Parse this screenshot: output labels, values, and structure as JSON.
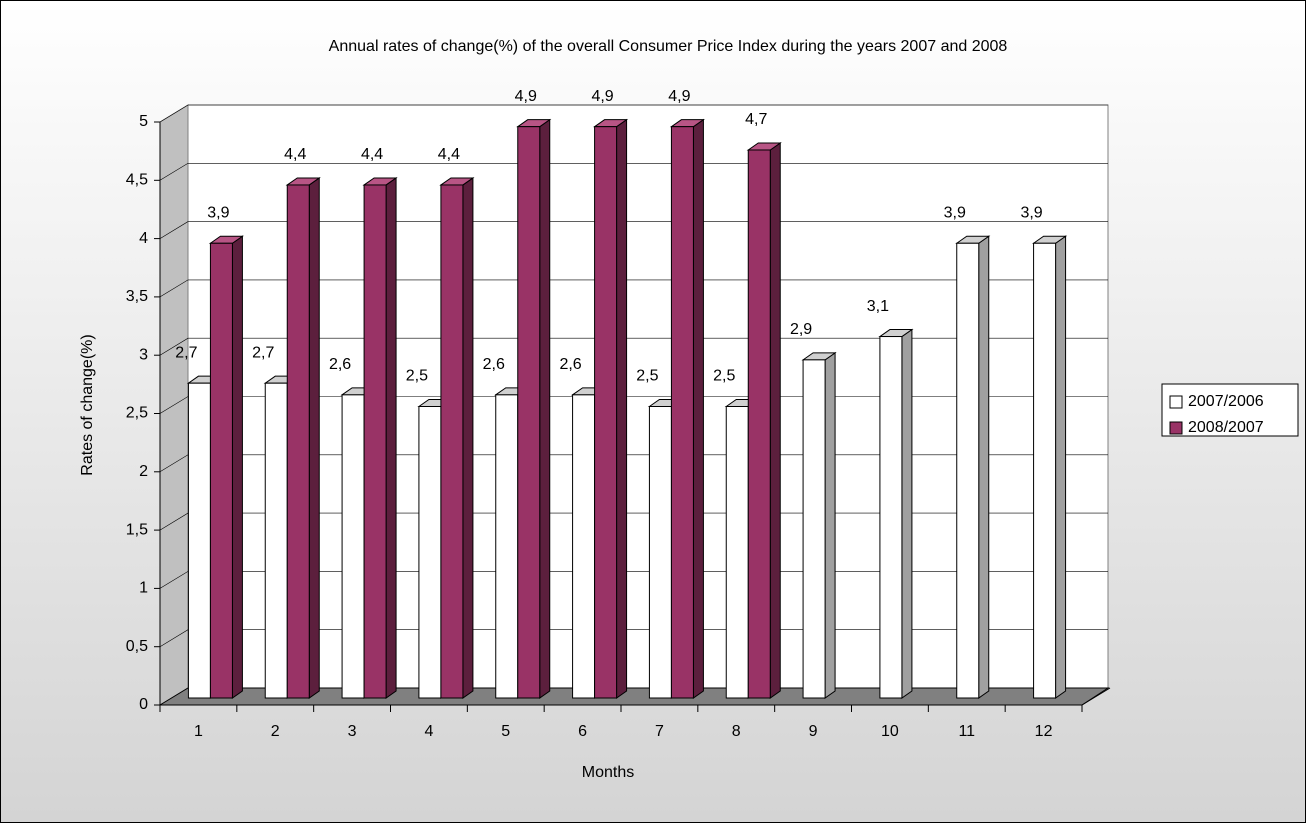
{
  "chart_data": {
    "type": "bar3d",
    "title": "Annual rates of change(%) of the overall Consumer Price Index during the years 2007 and 2008",
    "x_label": "Months",
    "y_label": "Rates of change(%)",
    "categories": [
      "1",
      "2",
      "3",
      "4",
      "5",
      "6",
      "7",
      "8",
      "9",
      "10",
      "11",
      "12"
    ],
    "series": [
      {
        "name": "2007/2006",
        "color": "#ffffff",
        "values": [
          2.7,
          2.7,
          2.6,
          2.5,
          2.6,
          2.6,
          2.5,
          2.5,
          2.9,
          3.1,
          3.9,
          3.9
        ],
        "value_labels": [
          "2,7",
          "2,7",
          "2,6",
          "2,5",
          "2,6",
          "2,6",
          "2,5",
          "2,5",
          "2,9",
          "3,1",
          "3,9",
          "3,9"
        ]
      },
      {
        "name": "2008/2007",
        "color": "#993366",
        "values": [
          3.9,
          4.4,
          4.4,
          4.4,
          4.9,
          4.9,
          4.9,
          4.7,
          null,
          null,
          null,
          null
        ],
        "value_labels": [
          "3,9",
          "4,4",
          "4,4",
          "4,4",
          "4,9",
          "4,9",
          "4,9",
          "4,7",
          null,
          null,
          null,
          null
        ]
      }
    ],
    "ylim": [
      0,
      5
    ],
    "yticks": [
      0,
      {
        "value": 0.5,
        "label": "0,5"
      },
      1,
      {
        "value": 1.5,
        "label": "1,5"
      },
      2,
      {
        "value": 2.5,
        "label": "2,5"
      },
      3,
      {
        "value": 3.5,
        "label": "3,5"
      },
      4,
      {
        "value": 4.5,
        "label": "4,5"
      },
      5
    ],
    "grid": true,
    "legend": "right"
  }
}
